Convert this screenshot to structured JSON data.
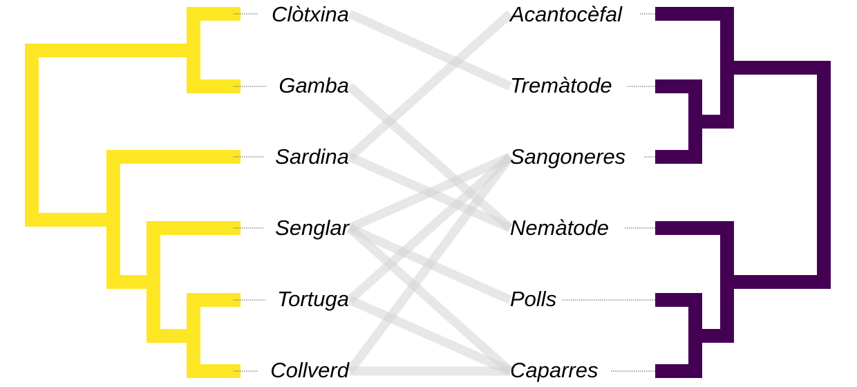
{
  "colors": {
    "left_tree": "#fde725",
    "right_tree": "#440154",
    "link": "#d3d3d3",
    "leader": "#555555"
  },
  "left_taxa": [
    "Clòtxina",
    "Gamba",
    "Sardina",
    "Senglar",
    "Tortuga",
    "Collverd"
  ],
  "right_taxa": [
    "Acantocèfal",
    "Tremàtode",
    "Sangoneres",
    "Nemàtode",
    "Polls",
    "Caparres"
  ],
  "links": [
    [
      "Clòtxina",
      "Tremàtode"
    ],
    [
      "Gamba",
      "Nemàtode"
    ],
    [
      "Sardina",
      "Acantocèfal"
    ],
    [
      "Sardina",
      "Nemàtode"
    ],
    [
      "Senglar",
      "Sangoneres"
    ],
    [
      "Senglar",
      "Polls"
    ],
    [
      "Senglar",
      "Caparres"
    ],
    [
      "Tortuga",
      "Sangoneres"
    ],
    [
      "Tortuga",
      "Caparres"
    ],
    [
      "Collverd",
      "Sangoneres"
    ],
    [
      "Collverd",
      "Caparres"
    ]
  ]
}
